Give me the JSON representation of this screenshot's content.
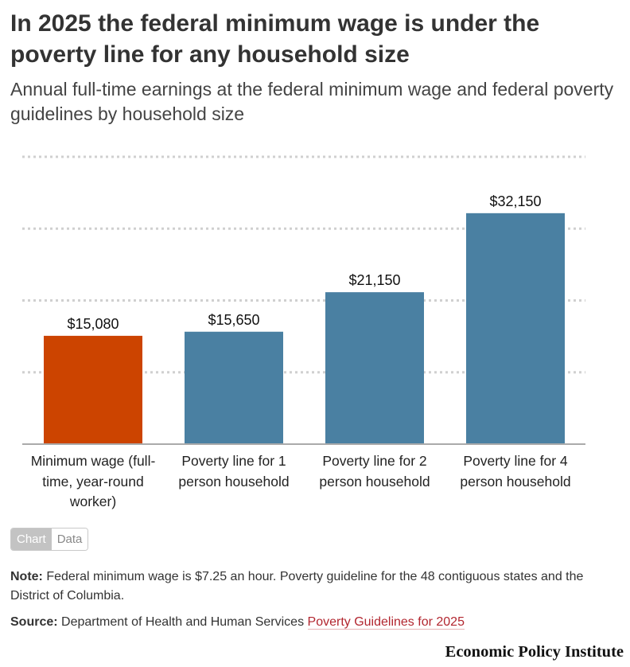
{
  "title": "In 2025 the federal minimum wage is under the poverty line for any household size",
  "subtitle": "Annual full-time earnings at the federal minimum wage and federal poverty guidelines by household size",
  "chart_data": {
    "type": "bar",
    "categories": [
      "Minimum wage (full-time, year-round worker)",
      "Poverty line for 1 person household",
      "Poverty line for 2 person household",
      "Poverty line for 4 person household"
    ],
    "values": [
      15080,
      15650,
      21150,
      32150
    ],
    "data_labels": [
      "$15,080",
      "$15,650",
      "$21,150",
      "$32,150"
    ],
    "colors": [
      "#cc4400",
      "#4a80a2",
      "#4a80a2",
      "#4a80a2"
    ],
    "ylim": [
      0,
      40000
    ],
    "gridlines": [
      10000,
      20000,
      30000,
      40000
    ],
    "grid": true,
    "xlabel": "",
    "ylabel": ""
  },
  "toggle": {
    "chart_label": "Chart",
    "data_label": "Data"
  },
  "note": {
    "label": "Note:",
    "text": " Federal minimum wage is $7.25 an hour. Poverty guideline for the 48 contiguous states and the District of Columbia."
  },
  "source": {
    "label": "Source:",
    "text": " Department of Health and Human Services ",
    "link_text": "Poverty Guidelines for 2025"
  },
  "branding": {
    "logo_text": "Economic Policy Institute"
  }
}
